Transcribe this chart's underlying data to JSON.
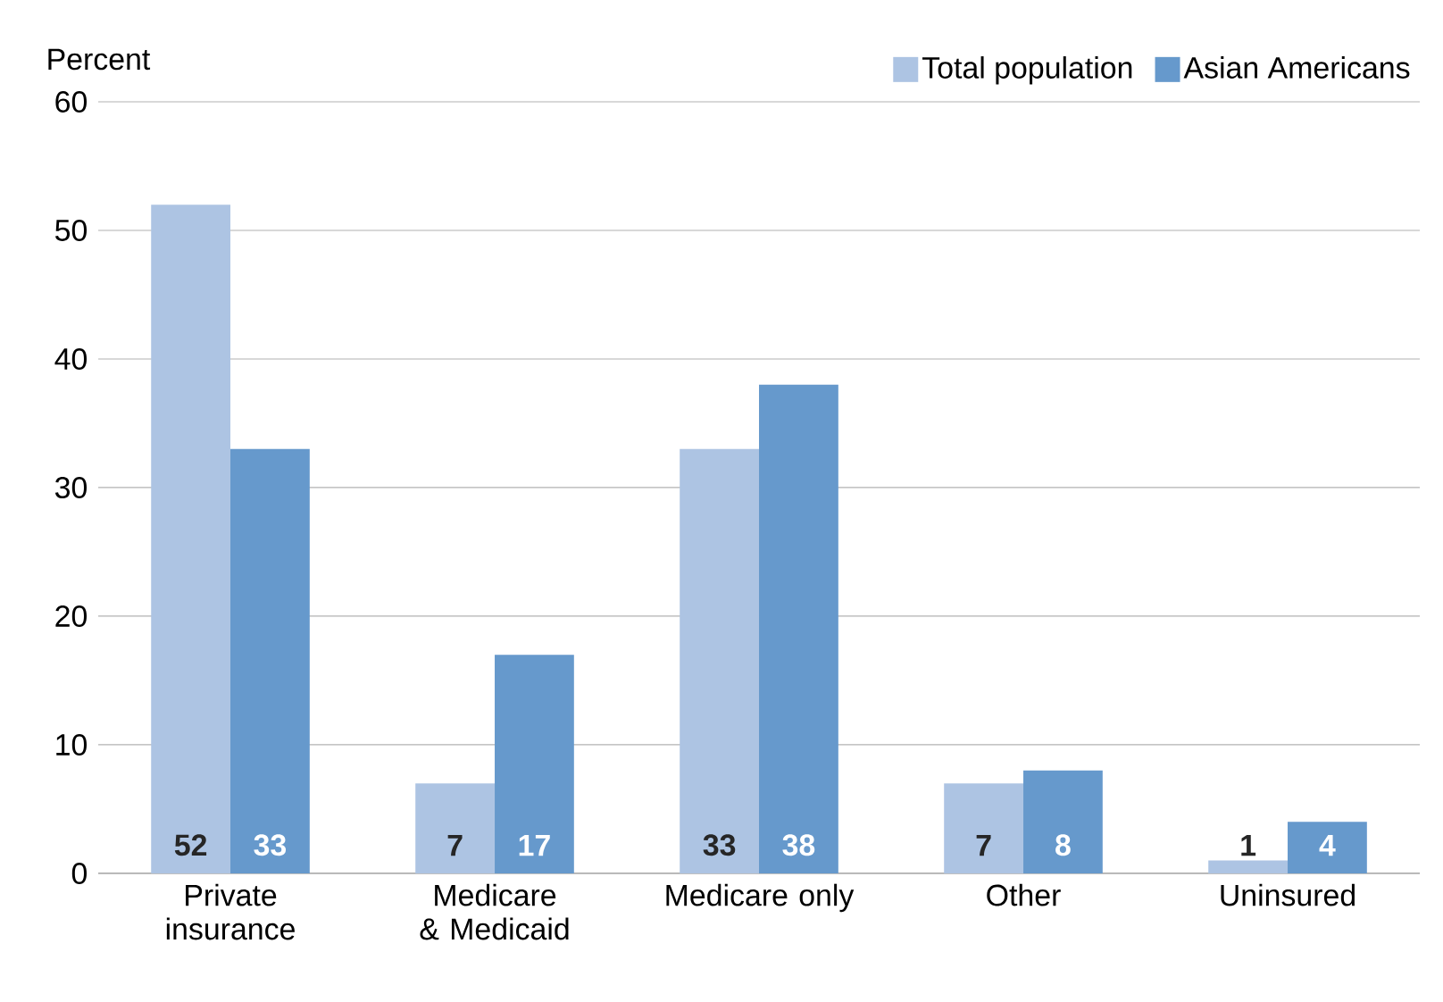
{
  "chart_data": {
    "type": "bar",
    "ylabel": "Percent",
    "categories": [
      "Private insurance",
      "Medicare & Medicaid",
      "Medicare only",
      "Other",
      "Uninsured"
    ],
    "series": [
      {
        "name": "Total population",
        "color": "#adc4e3",
        "values": [
          52,
          7,
          33,
          7,
          1
        ]
      },
      {
        "name": "Asian Americans",
        "color": "#6699cc",
        "values": [
          33,
          17,
          38,
          8,
          4
        ]
      }
    ],
    "ylim": [
      0,
      60
    ],
    "yticks": [
      0,
      10,
      20,
      30,
      40,
      50,
      60
    ],
    "grid": "y",
    "legend": "top right",
    "data_labels": true
  }
}
